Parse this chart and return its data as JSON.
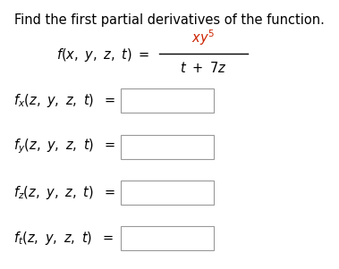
{
  "background_color": "#ffffff",
  "title_text": "Find the first partial derivatives of the function.",
  "title_fontsize": 10.5,
  "text_color": "#000000",
  "red_color": "#cc2200",
  "box_edge_color": "#999999",
  "fontsize_main": 10.5,
  "rows": [
    {
      "subscript": "x"
    },
    {
      "subscript": "y"
    },
    {
      "subscript": "z"
    },
    {
      "subscript": "t"
    }
  ]
}
